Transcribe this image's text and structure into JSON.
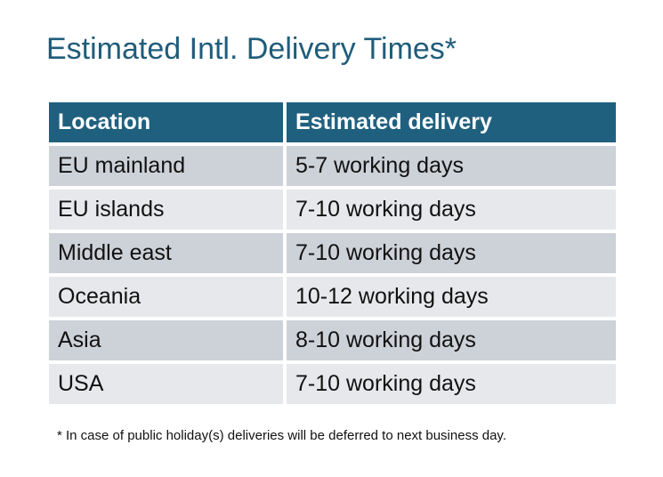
{
  "title": "Estimated Intl. Delivery Times*",
  "table": {
    "headers": [
      "Location",
      "Estimated delivery"
    ],
    "rows": [
      [
        "EU mainland",
        "5-7 working days"
      ],
      [
        "EU islands",
        "7-10 working days"
      ],
      [
        "Middle east",
        "7-10 working days"
      ],
      [
        "Oceania",
        "10-12 working days"
      ],
      [
        "Asia",
        "8-10 working days"
      ],
      [
        "USA",
        "7-10 working days"
      ]
    ]
  },
  "footnote": "* In case of public holiday(s) deliveries will be deferred to next business day.",
  "colors": {
    "header": "#20607f",
    "title": "#1f5c7a",
    "row_dark": "#cdd1d8",
    "row_light": "#e6e8eb"
  }
}
